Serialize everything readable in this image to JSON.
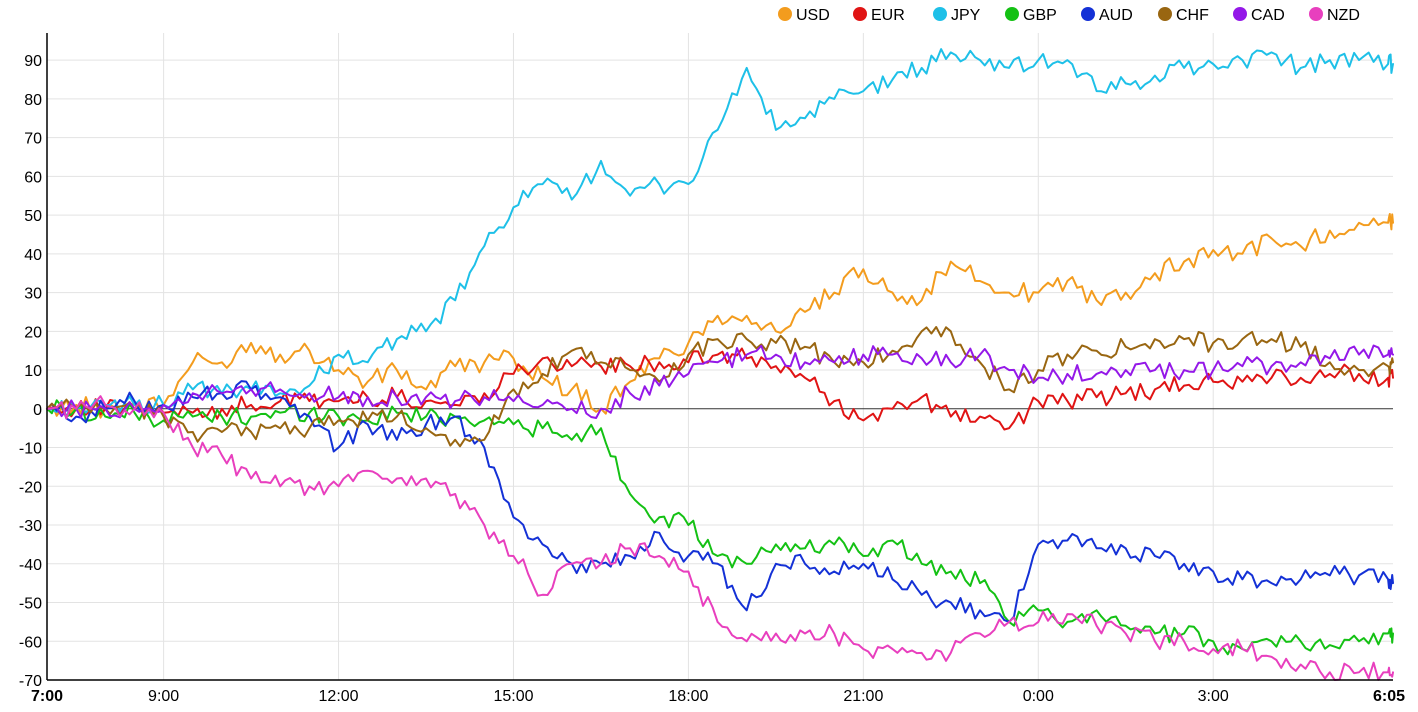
{
  "chart_data": {
    "type": "line",
    "title": "",
    "xlabel": "",
    "ylabel": "",
    "ylim": [
      -70,
      97
    ],
    "xlim": [
      "7:00",
      "6:05"
    ],
    "grid": true,
    "legend_position": "top-right",
    "x_ticks": [
      {
        "label": "7:00",
        "hour": 0,
        "bold": true
      },
      {
        "label": "9:00",
        "hour": 2
      },
      {
        "label": "12:00",
        "hour": 5
      },
      {
        "label": "15:00",
        "hour": 8
      },
      {
        "label": "18:00",
        "hour": 11
      },
      {
        "label": "21:00",
        "hour": 14
      },
      {
        "label": "0:00",
        "hour": 17
      },
      {
        "label": "3:00",
        "hour": 20
      },
      {
        "label": "6:05",
        "hour": 23.0833,
        "bold": true
      }
    ],
    "y_ticks": [
      "90",
      "80",
      "70",
      "60",
      "50",
      "40",
      "30",
      "20",
      "10",
      "0",
      "-10",
      "-20",
      "-30",
      "-40",
      "-50",
      "-60",
      "-70"
    ],
    "x_hours": [
      0,
      0.5,
      1,
      1.5,
      2,
      2.5,
      3,
      3.5,
      4,
      4.5,
      5,
      5.5,
      6,
      6.5,
      7,
      7.5,
      8,
      8.5,
      9,
      9.5,
      10,
      10.5,
      11,
      11.5,
      12,
      12.5,
      13,
      13.5,
      14,
      14.5,
      15,
      15.5,
      16,
      16.5,
      17,
      17.5,
      18,
      18.5,
      19,
      19.5,
      20,
      20.5,
      21,
      21.5,
      22,
      22.5,
      23,
      23.0833
    ],
    "series": [
      {
        "name": "USD",
        "color": "#F39C1E",
        "values": [
          0,
          1,
          0,
          1,
          1,
          12,
          12,
          17,
          14,
          15,
          10,
          7,
          10,
          5,
          11,
          12,
          13,
          8,
          5,
          0,
          7,
          13,
          17,
          24,
          24,
          20,
          25,
          30,
          36,
          30,
          28,
          38,
          33,
          30,
          30,
          33,
          28,
          30,
          35,
          38,
          41,
          40,
          44,
          42,
          46,
          48,
          48,
          48
        ]
      },
      {
        "name": "EUR",
        "color": "#E01414",
        "values": [
          0,
          0,
          0,
          0,
          -1,
          -1,
          0,
          1,
          2,
          2,
          2,
          3,
          3,
          2,
          1,
          4,
          9,
          13,
          11,
          11,
          11,
          12,
          12,
          14,
          13,
          11,
          8,
          2,
          -3,
          0,
          3,
          -2,
          -2,
          -5,
          2,
          2,
          3,
          4,
          5,
          6,
          7,
          7,
          8,
          8,
          9,
          9,
          8,
          8
        ]
      },
      {
        "name": "JPY",
        "color": "#1EC0E8",
        "values": [
          0,
          0,
          1,
          1,
          1,
          5,
          4,
          5,
          4,
          6,
          14,
          12,
          18,
          20,
          28,
          42,
          52,
          58,
          54,
          64,
          55,
          58,
          58,
          72,
          88,
          72,
          75,
          80,
          82,
          85,
          88,
          92,
          90,
          88,
          90,
          90,
          82,
          84,
          86,
          88,
          89,
          90,
          92,
          88,
          90,
          90,
          89,
          89
        ]
      },
      {
        "name": "GBP",
        "color": "#14C114",
        "values": [
          0,
          0,
          -2,
          -1,
          -3,
          -2,
          -2,
          -2,
          -1,
          -1,
          -2,
          -3,
          -1,
          -2,
          -2,
          -3,
          -4,
          -5,
          -8,
          -5,
          -22,
          -28,
          -30,
          -38,
          -40,
          -35,
          -36,
          -35,
          -38,
          -34,
          -40,
          -42,
          -45,
          -55,
          -52,
          -55,
          -52,
          -56,
          -58,
          -58,
          -60,
          -62,
          -60,
          -60,
          -61,
          -60,
          -58,
          -58
        ]
      },
      {
        "name": "AUD",
        "color": "#1431D6",
        "values": [
          0,
          -2,
          0,
          2,
          1,
          3,
          4,
          5,
          3,
          -2,
          -10,
          -4,
          -8,
          -4,
          -2,
          -10,
          -28,
          -35,
          -40,
          -40,
          -38,
          -32,
          -38,
          -40,
          -52,
          -40,
          -40,
          -42,
          -40,
          -44,
          -48,
          -50,
          -52,
          -55,
          -35,
          -34,
          -36,
          -36,
          -38,
          -40,
          -42,
          -44,
          -45,
          -44,
          -43,
          -43,
          -44,
          -45
        ]
      },
      {
        "name": "CHF",
        "color": "#996611",
        "values": [
          0,
          0,
          0,
          0,
          -2,
          -6,
          -6,
          -6,
          -5,
          -5,
          -3,
          -3,
          -2,
          -5,
          -8,
          -8,
          5,
          9,
          15,
          12,
          10,
          7,
          14,
          18,
          18,
          17,
          16,
          12,
          12,
          15,
          20,
          20,
          12,
          5,
          10,
          14,
          15,
          16,
          18,
          18,
          17,
          18,
          18,
          16,
          12,
          10,
          11,
          12
        ]
      },
      {
        "name": "CAD",
        "color": "#9418E8",
        "values": [
          0,
          0,
          0,
          0,
          1,
          4,
          4,
          5,
          5,
          4,
          3,
          3,
          3,
          3,
          2,
          3,
          2,
          1,
          0,
          0,
          4,
          6,
          9,
          12,
          14,
          14,
          12,
          12,
          14,
          14,
          13,
          12,
          14,
          10,
          8,
          9,
          9,
          10,
          10,
          10,
          10,
          11,
          11,
          12,
          13,
          14,
          14,
          14
        ]
      },
      {
        "name": "NZD",
        "color": "#E83FBE",
        "values": [
          0,
          0,
          1,
          0,
          -1,
          -10,
          -12,
          -18,
          -20,
          -20,
          -20,
          -16,
          -18,
          -18,
          -22,
          -30,
          -38,
          -48,
          -40,
          -40,
          -36,
          -38,
          -42,
          -55,
          -60,
          -58,
          -58,
          -58,
          -62,
          -62,
          -63,
          -63,
          -58,
          -55,
          -55,
          -53,
          -56,
          -58,
          -60,
          -60,
          -62,
          -62,
          -64,
          -66,
          -68,
          -68,
          -68,
          -68
        ]
      }
    ]
  }
}
